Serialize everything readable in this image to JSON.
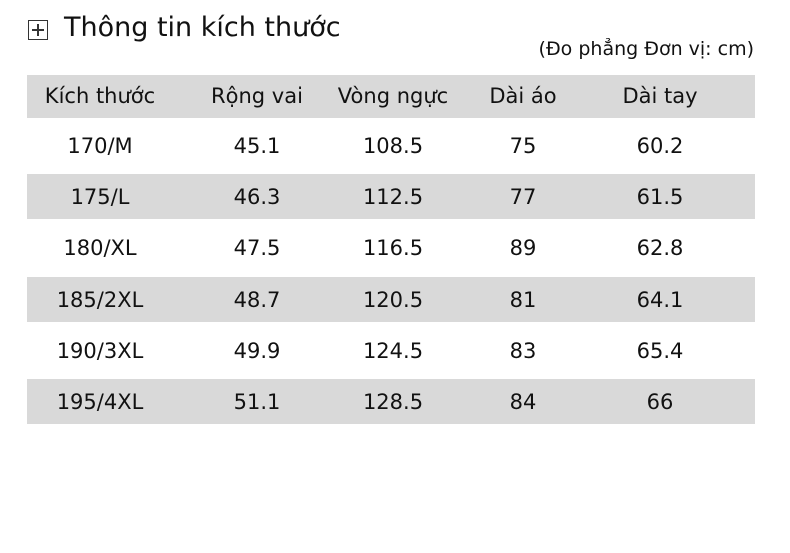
{
  "header": {
    "title": "Thông tin kích thước",
    "note": "(Đo phẳng Đơn vị: cm)"
  },
  "table": {
    "columns": [
      "Kích thước",
      "Rộng vai",
      "Vòng ngực",
      "Dài áo",
      "Dài tay"
    ],
    "rows": [
      [
        "170/M",
        45.1,
        108.5,
        75,
        60.2
      ],
      [
        "175/L",
        46.3,
        112.5,
        77,
        61.5
      ],
      [
        "180/XL",
        47.5,
        116.5,
        89,
        62.8
      ],
      [
        "185/2XL",
        48.7,
        120.5,
        81,
        64.1
      ],
      [
        "190/3XL",
        49.9,
        124.5,
        83,
        65.4
      ],
      [
        "195/4XL",
        51.1,
        128.5,
        84,
        66
      ]
    ]
  }
}
